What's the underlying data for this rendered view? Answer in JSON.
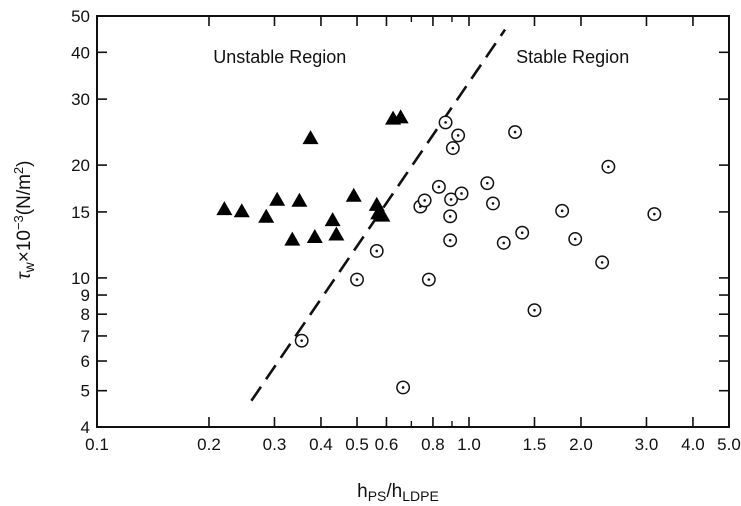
{
  "chart_data": {
    "type": "scatter",
    "title": "",
    "xlabel": {
      "main": "h",
      "sub1": "PS",
      "sep": "/h",
      "sub2": "LDPE"
    },
    "ylabel": {
      "tau": "τ",
      "sub": "w",
      "rest1": "×10",
      "exp": "−3",
      "rest2": "(N/m",
      "exp2": "2",
      "rest3": ")"
    },
    "x_scale": "log",
    "y_scale": "log",
    "xlim": [
      0.1,
      5.0
    ],
    "ylim": [
      4,
      50
    ],
    "grid": false,
    "x_ticks": [
      {
        "value": 0.1,
        "label": "0.1"
      },
      {
        "value": 0.2,
        "label": "0.2"
      },
      {
        "value": 0.3,
        "label": "0.3"
      },
      {
        "value": 0.4,
        "label": "0.4"
      },
      {
        "value": 0.5,
        "label": "0.5"
      },
      {
        "value": 0.6,
        "label": "0.6"
      },
      {
        "value": 0.8,
        "label": "0.8"
      },
      {
        "value": 1.0,
        "label": "1.0"
      },
      {
        "value": 1.5,
        "label": "1.5"
      },
      {
        "value": 2.0,
        "label": "2.0"
      },
      {
        "value": 3.0,
        "label": "3.0"
      },
      {
        "value": 4.0,
        "label": "4.0"
      },
      {
        "value": 5.0,
        "label": "5.0"
      }
    ],
    "y_ticks": [
      {
        "value": 4,
        "label": "4"
      },
      {
        "value": 5,
        "label": "5"
      },
      {
        "value": 6,
        "label": "6"
      },
      {
        "value": 7,
        "label": "7"
      },
      {
        "value": 8,
        "label": "8"
      },
      {
        "value": 9,
        "label": "9"
      },
      {
        "value": 10,
        "label": "10"
      },
      {
        "value": 15,
        "label": "15"
      },
      {
        "value": 20,
        "label": "20"
      },
      {
        "value": 30,
        "label": "30"
      },
      {
        "value": 40,
        "label": "40"
      },
      {
        "value": 50,
        "label": "50"
      }
    ],
    "x_minor_ticks": [
      0.7,
      0.9
    ],
    "annotations": [
      {
        "text": "Unstable Region",
        "x": 0.31,
        "y": 37.5
      },
      {
        "text": "Stable Region",
        "x": 1.9,
        "y": 37.5
      }
    ],
    "boundary_line": {
      "style": "dashed",
      "points": [
        [
          0.26,
          4.7
        ],
        [
          1.25,
          46
        ]
      ]
    },
    "series": [
      {
        "marker": "filled-triangle",
        "points": [
          [
            0.22,
            15.2
          ],
          [
            0.245,
            15.0
          ],
          [
            0.285,
            14.5
          ],
          [
            0.305,
            16.1
          ],
          [
            0.335,
            12.6
          ],
          [
            0.35,
            16.0
          ],
          [
            0.375,
            23.5
          ],
          [
            0.385,
            12.8
          ],
          [
            0.43,
            14.2
          ],
          [
            0.44,
            13.0
          ],
          [
            0.49,
            16.5
          ],
          [
            0.565,
            15.6
          ],
          [
            0.57,
            14.8
          ],
          [
            0.585,
            14.6
          ],
          [
            0.625,
            26.5
          ],
          [
            0.655,
            26.7
          ]
        ]
      },
      {
        "marker": "open-circle-dot",
        "points": [
          [
            0.355,
            6.8
          ],
          [
            0.5,
            9.9
          ],
          [
            0.565,
            11.8
          ],
          [
            0.665,
            5.1
          ],
          [
            0.74,
            15.5
          ],
          [
            0.76,
            16.1
          ],
          [
            0.78,
            9.9
          ],
          [
            0.83,
            17.5
          ],
          [
            0.865,
            26.0
          ],
          [
            0.89,
            12.6
          ],
          [
            0.89,
            14.6
          ],
          [
            0.895,
            16.2
          ],
          [
            0.905,
            22.2
          ],
          [
            0.935,
            24.0
          ],
          [
            0.955,
            16.8
          ],
          [
            1.12,
            17.9
          ],
          [
            1.16,
            15.8
          ],
          [
            1.24,
            12.4
          ],
          [
            1.33,
            24.5
          ],
          [
            1.39,
            13.2
          ],
          [
            1.5,
            8.2
          ],
          [
            1.78,
            15.1
          ],
          [
            1.93,
            12.7
          ],
          [
            2.28,
            11.0
          ],
          [
            2.37,
            19.8
          ],
          [
            3.15,
            14.8
          ]
        ]
      }
    ]
  }
}
